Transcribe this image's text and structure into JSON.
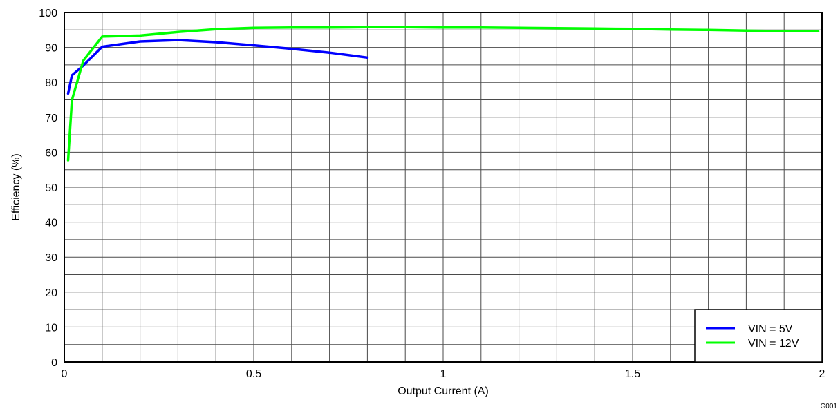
{
  "chart_data": {
    "type": "line",
    "title": "",
    "xlabel": "Output Current (A)",
    "ylabel": "Efficiency (%)",
    "xlim": [
      0,
      2
    ],
    "ylim": [
      0,
      100
    ],
    "x_ticks": [
      0,
      0.5,
      1,
      1.5,
      2
    ],
    "x_tick_labels": [
      "0",
      "0.5",
      "1",
      "1.5",
      "2"
    ],
    "y_ticks": [
      0,
      10,
      20,
      30,
      40,
      50,
      60,
      70,
      80,
      90,
      100
    ],
    "y_tick_labels": [
      "0",
      "10",
      "20",
      "30",
      "40",
      "50",
      "60",
      "70",
      "80",
      "90",
      "100"
    ],
    "x_minor_step": 0.1,
    "y_minor_step": 5,
    "grid": true,
    "legend_position": "bottom-right",
    "series": [
      {
        "name": "VIN = 5V",
        "color": "#0000ff",
        "x": [
          0.01,
          0.02,
          0.05,
          0.1,
          0.2,
          0.3,
          0.4,
          0.5,
          0.6,
          0.7,
          0.8
        ],
        "y": [
          76.8,
          82.0,
          84.8,
          90.2,
          91.7,
          92.1,
          91.5,
          90.6,
          89.6,
          88.5,
          87.1
        ]
      },
      {
        "name": "VIN = 12V",
        "color": "#00ff00",
        "x": [
          0.01,
          0.02,
          0.05,
          0.1,
          0.2,
          0.3,
          0.4,
          0.5,
          0.6,
          0.7,
          0.8,
          0.9,
          1.0,
          1.1,
          1.2,
          1.3,
          1.4,
          1.5,
          1.6,
          1.7,
          1.8,
          1.9,
          1.99
        ],
        "y": [
          57.7,
          74.9,
          86.2,
          93.1,
          93.4,
          94.4,
          95.2,
          95.6,
          95.7,
          95.7,
          95.8,
          95.8,
          95.7,
          95.7,
          95.6,
          95.5,
          95.4,
          95.3,
          95.1,
          95.0,
          94.8,
          94.6,
          94.6
        ]
      }
    ]
  },
  "footnote": "G001"
}
